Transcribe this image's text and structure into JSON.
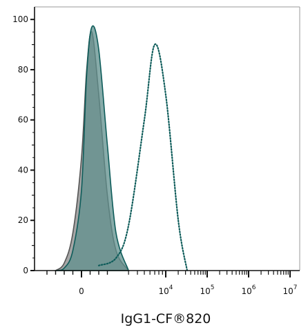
{
  "chart_data": {
    "type": "area",
    "title": "",
    "xlabel": "IgG1-CF®820",
    "ylabel": "",
    "x_scale": "biexponential",
    "ylim": [
      0,
      105
    ],
    "y_ticks": [
      0,
      20,
      40,
      60,
      80,
      100
    ],
    "x_ticks": [
      {
        "base": "0",
        "exp": ""
      },
      {
        "base": "10",
        "exp": "4"
      },
      {
        "base": "10",
        "exp": "5"
      },
      {
        "base": "10",
        "exp": "6"
      },
      {
        "base": "10",
        "exp": "7"
      }
    ],
    "grid": false,
    "legend": "none",
    "series": [
      {
        "style": "filled",
        "fill": "#a6a6a6",
        "stroke": "#555555",
        "x": [
          "-1.5e3",
          "-1e3",
          "-5e2",
          "0",
          "3e2",
          "6e2",
          "1e3",
          "1.5e3",
          "2e3",
          "3e3"
        ],
        "values": [
          0,
          3,
          15,
          45,
          80,
          95,
          70,
          30,
          8,
          0
        ]
      },
      {
        "style": "filled",
        "fill": "#5f8f8c",
        "fill_opacity": 0.75,
        "stroke": "#0e5c5a",
        "x": [
          "-1.5e3",
          "-1e3",
          "-5e2",
          "0",
          "3e2",
          "6e2",
          "1e3",
          "1.5e3",
          "2e3",
          "3e3"
        ],
        "values": [
          0,
          1,
          8,
          32,
          78,
          97,
          88,
          50,
          15,
          0
        ]
      },
      {
        "style": "dotted",
        "stroke": "#0e5c5a",
        "x": [
          "1e3",
          "2e3",
          "3e3",
          "5e3",
          "7e3",
          "1e4",
          "1.5e4",
          "2e4"
        ],
        "values": [
          2,
          5,
          18,
          60,
          90,
          70,
          20,
          0
        ]
      }
    ]
  }
}
